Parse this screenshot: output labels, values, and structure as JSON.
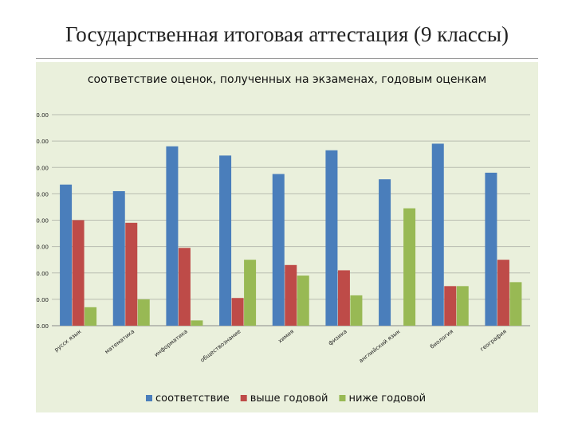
{
  "slide": {
    "title": "Государственная итоговая аттестация (9 классы)"
  },
  "chart_data": {
    "type": "bar",
    "title": "соответствие оценок, полученных на экзаменах, годовым оценкам",
    "xlabel": "",
    "ylabel": "",
    "ylim": [
      0,
      80
    ],
    "yticks": [
      "0.00",
      "10.00",
      "20.00",
      "30.00",
      "40.00",
      "50.00",
      "60.00",
      "70.00",
      "80.00"
    ],
    "grid": true,
    "legend_position": "bottom",
    "categories": [
      "русск язык",
      "математика",
      "информатика",
      "обществознание",
      "химия",
      "физика",
      "английский язык",
      "биология",
      "география"
    ],
    "series": [
      {
        "name": "соответствие",
        "color": "#4a7ebb",
        "values": [
          53.5,
          51,
          68,
          64.5,
          57.5,
          66.5,
          55.5,
          69,
          58
        ]
      },
      {
        "name": "выше годовой",
        "color": "#be4b48",
        "values": [
          40,
          39,
          29.5,
          10.5,
          23,
          21,
          0,
          15,
          25
        ]
      },
      {
        "name": "ниже годовой",
        "color": "#98b954",
        "values": [
          7,
          10,
          2,
          25,
          19,
          11.5,
          44.5,
          15,
          16.5
        ]
      }
    ]
  }
}
